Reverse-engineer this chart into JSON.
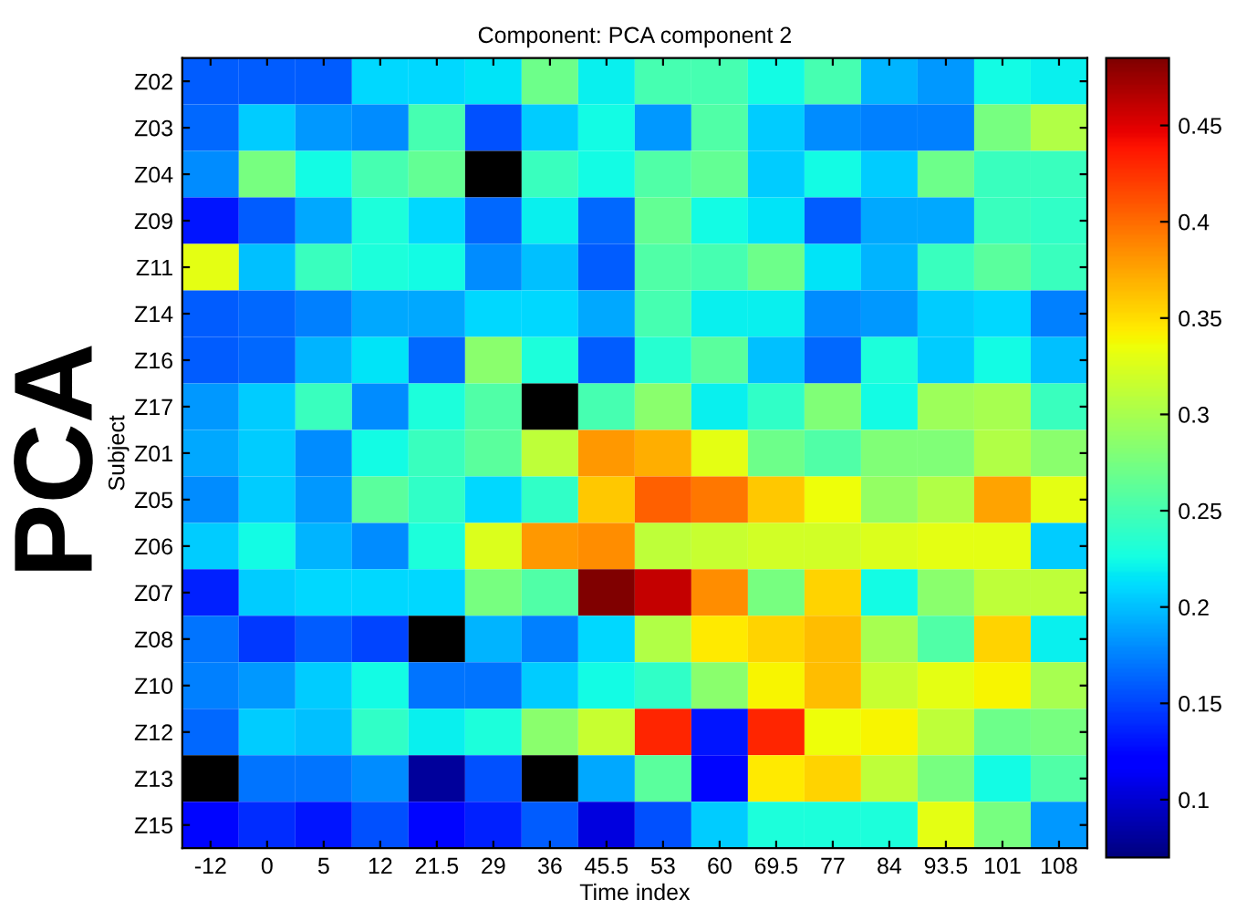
{
  "chart_data": {
    "type": "heatmap",
    "title": "Component: PCA component 2",
    "xlabel": "Time index",
    "ylabel": "Subject",
    "annotations": [
      "PCA"
    ],
    "categories": [
      "-12",
      "0",
      "5",
      "12",
      "21.5",
      "29",
      "36",
      "45.5",
      "53",
      "60",
      "69.5",
      "77",
      "84",
      "93.5",
      "101",
      "108"
    ],
    "y_categories": [
      "Z02",
      "Z03",
      "Z04",
      "Z09",
      "Z11",
      "Z14",
      "Z16",
      "Z17",
      "Z01",
      "Z05",
      "Z06",
      "Z07",
      "Z08",
      "Z10",
      "Z12",
      "Z13",
      "Z15"
    ],
    "cells": [
      [
        0.16,
        0.16,
        0.16,
        0.21,
        0.21,
        0.215,
        0.27,
        0.22,
        0.25,
        0.25,
        0.225,
        0.25,
        0.195,
        0.185,
        0.225,
        0.22
      ],
      [
        0.165,
        0.205,
        0.185,
        0.18,
        0.25,
        0.155,
        0.205,
        0.225,
        0.185,
        0.255,
        0.205,
        0.18,
        0.175,
        0.175,
        0.275,
        0.305
      ],
      [
        0.18,
        0.275,
        0.225,
        0.25,
        0.265,
        null,
        0.245,
        0.225,
        0.255,
        0.265,
        0.205,
        0.225,
        0.205,
        0.27,
        0.245,
        0.245
      ],
      [
        0.13,
        0.16,
        0.19,
        0.23,
        0.21,
        0.165,
        0.22,
        0.165,
        0.265,
        0.225,
        0.215,
        0.16,
        0.19,
        0.19,
        0.245,
        0.24
      ],
      [
        0.33,
        0.2,
        0.245,
        0.23,
        0.225,
        0.18,
        0.2,
        0.16,
        0.255,
        0.25,
        0.27,
        0.215,
        0.195,
        0.245,
        0.26,
        0.245
      ],
      [
        0.16,
        0.165,
        0.175,
        0.19,
        0.19,
        0.21,
        0.21,
        0.19,
        0.25,
        0.22,
        0.22,
        0.18,
        0.185,
        0.205,
        0.21,
        0.175
      ],
      [
        0.16,
        0.165,
        0.195,
        0.215,
        0.165,
        0.285,
        0.23,
        0.16,
        0.235,
        0.26,
        0.2,
        0.165,
        0.23,
        0.205,
        0.225,
        0.2
      ],
      [
        0.185,
        0.205,
        0.245,
        0.18,
        0.23,
        0.255,
        null,
        0.25,
        0.285,
        0.22,
        0.24,
        0.28,
        0.225,
        0.295,
        0.3,
        0.245
      ],
      [
        0.19,
        0.205,
        0.18,
        0.225,
        0.245,
        0.26,
        0.31,
        0.38,
        0.37,
        0.33,
        0.27,
        0.255,
        0.28,
        0.28,
        0.305,
        0.285
      ],
      [
        0.18,
        0.205,
        0.185,
        0.26,
        0.24,
        0.21,
        0.24,
        0.36,
        0.405,
        0.395,
        0.36,
        0.335,
        0.29,
        0.305,
        0.375,
        0.33
      ],
      [
        0.205,
        0.225,
        0.195,
        0.18,
        0.23,
        0.325,
        0.38,
        0.385,
        0.31,
        0.315,
        0.32,
        0.32,
        0.325,
        0.33,
        0.33,
        0.205
      ],
      [
        0.135,
        0.205,
        0.21,
        0.21,
        0.21,
        0.275,
        0.255,
        0.485,
        0.46,
        0.385,
        0.275,
        0.355,
        0.225,
        0.285,
        0.31,
        0.31
      ],
      [
        0.17,
        0.145,
        0.16,
        0.15,
        null,
        0.195,
        0.175,
        0.21,
        0.305,
        0.345,
        0.355,
        0.365,
        0.3,
        0.255,
        0.355,
        0.22
      ],
      [
        0.175,
        0.185,
        0.205,
        0.225,
        0.17,
        0.17,
        0.205,
        0.225,
        0.24,
        0.285,
        0.34,
        0.365,
        0.315,
        0.33,
        0.34,
        0.3
      ],
      [
        0.165,
        0.205,
        0.2,
        0.24,
        0.22,
        0.23,
        0.285,
        0.315,
        0.43,
        0.13,
        0.43,
        0.335,
        0.34,
        0.31,
        0.27,
        0.275
      ],
      [
        null,
        0.17,
        0.17,
        0.18,
        0.08,
        0.155,
        null,
        0.19,
        0.26,
        0.125,
        0.345,
        0.355,
        0.31,
        0.275,
        0.225,
        0.255
      ],
      [
        0.125,
        0.14,
        0.13,
        0.155,
        0.125,
        0.135,
        0.16,
        0.105,
        0.155,
        0.205,
        0.23,
        0.23,
        0.23,
        0.33,
        0.275,
        0.185
      ]
    ],
    "clim": [
      0.07,
      0.485
    ],
    "cticks": [
      0.1,
      0.15,
      0.2,
      0.25,
      0.3,
      0.35,
      0.4,
      0.45
    ]
  }
}
